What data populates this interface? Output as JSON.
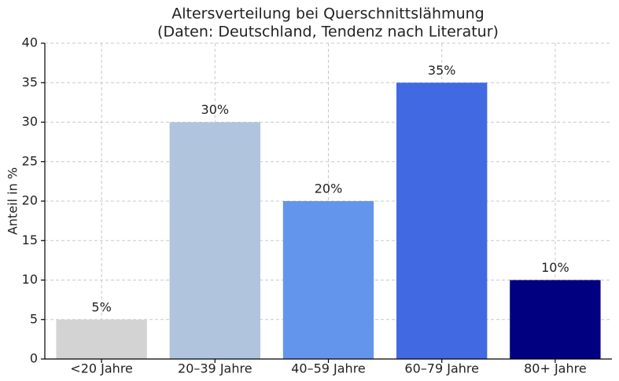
{
  "chart_data": {
    "type": "bar",
    "title": "Altersverteilung bei Querschnittslähmung",
    "subtitle": "(Daten: Deutschland, Tendenz nach Literatur)",
    "y_label": "Anteil in %",
    "categories": [
      "<20 Jahre",
      "20–39 Jahre",
      "40–59 Jahre",
      "60–79 Jahre",
      "80+ Jahre"
    ],
    "values": [
      5,
      30,
      20,
      35,
      10
    ],
    "value_labels": [
      "5%",
      "30%",
      "20%",
      "35%",
      "10%"
    ],
    "colors": [
      "#d3d3d3",
      "#b0c4de",
      "#6495ed",
      "#4169e1",
      "#000080"
    ],
    "ylim": [
      0,
      40
    ],
    "yticks": [
      0,
      5,
      10,
      15,
      20,
      25,
      30,
      35,
      40
    ],
    "grid": true
  }
}
